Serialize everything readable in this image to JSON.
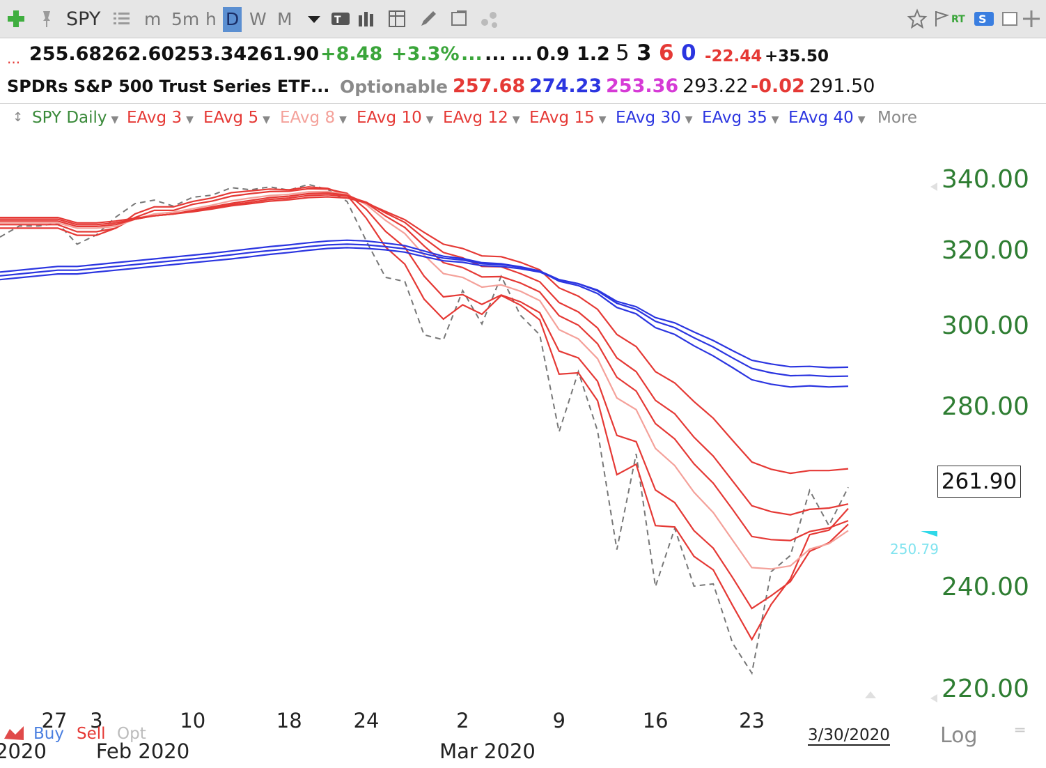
{
  "toolbar": {
    "symbol": "SPY",
    "intervals": [
      "m",
      "5m",
      "h",
      "D",
      "W",
      "M"
    ],
    "active_interval": "D",
    "rt_label": "RT",
    "icons": [
      "add-icon",
      "pin-icon",
      "list-icon",
      "dropdown-icon",
      "text-tool-icon",
      "bar-chart-icon",
      "table-icon",
      "pencil-icon",
      "notes-icon",
      "network-icon",
      "star-icon",
      "flag-icon",
      "s-icon",
      "window-icon",
      "move-icon"
    ]
  },
  "quote": {
    "prefix": "...",
    "open": "255.68",
    "high": "262.60",
    "low": "253.34",
    "close": "261.90",
    "change": "+8.48",
    "change_pct": "+3.3%",
    "dots1": "...",
    "dots2": "...",
    "dots3": "...",
    "v1": "0.9",
    "v2": "1.2",
    "v3": "5",
    "v4": "3",
    "v5": "6",
    "v6": "0",
    "v7": "-22.44",
    "v8": "+35.50",
    "name": "SPDRs S&P 500 Trust Series ETF",
    "dots4": "...",
    "optionable": "Optionable",
    "p1": "257.68",
    "p2": "274.23",
    "p3": "253.36",
    "p4": "293.22",
    "p5": "-0.02",
    "p6": "291.50"
  },
  "legend": {
    "main": "SPY Daily",
    "items": [
      {
        "label": "EAvg 3",
        "color": "#e53935"
      },
      {
        "label": "EAvg 5",
        "color": "#e53935"
      },
      {
        "label": "EAvg 8",
        "color": "#f4a19a"
      },
      {
        "label": "EAvg 10",
        "color": "#e53935"
      },
      {
        "label": "EAvg 12",
        "color": "#e53935"
      },
      {
        "label": "EAvg 15",
        "color": "#e53935"
      },
      {
        "label": "EAvg 30",
        "color": "#2b35e0"
      },
      {
        "label": "EAvg 35",
        "color": "#2b35e0"
      },
      {
        "label": "EAvg 40",
        "color": "#2b35e0"
      }
    ],
    "more": "More"
  },
  "bottom": {
    "buy": "Buy",
    "sell": "Sell",
    "opt": "Opt",
    "date": "3/30/2020",
    "log": "Log"
  },
  "chart_data": {
    "type": "line",
    "ylim": [
      220,
      340
    ],
    "y_ticks": [
      "340.00",
      "320.00",
      "300.00",
      "280.00",
      "240.00",
      "220.00"
    ],
    "x_ticks": [
      "27",
      "3",
      "10",
      "18",
      "24",
      "2",
      "9",
      "16",
      "23"
    ],
    "month_labels": [
      "2020",
      "Feb 2020",
      "Mar 2020"
    ],
    "last_price": "261.90",
    "marker_label": "250.79",
    "dates": [
      "1/27",
      "1/28",
      "1/29",
      "1/30",
      "1/31",
      "2/3",
      "2/4",
      "2/5",
      "2/6",
      "2/7",
      "2/10",
      "2/11",
      "2/12",
      "2/13",
      "2/14",
      "2/18",
      "2/19",
      "2/20",
      "2/21",
      "2/24",
      "2/25",
      "2/26",
      "2/27",
      "2/28",
      "3/2",
      "3/3",
      "3/4",
      "3/5",
      "3/6",
      "3/9",
      "3/10",
      "3/11",
      "3/12",
      "3/13",
      "3/16",
      "3/17",
      "3/18",
      "3/19",
      "3/20",
      "3/23",
      "3/24",
      "3/25",
      "3/26",
      "3/27",
      "3/30"
    ],
    "series": [
      {
        "name": "SPY Daily",
        "color": "#777777",
        "dashed": true,
        "values": [
          323.5,
          326.6,
          326.6,
          327.4,
          321.5,
          324.1,
          329.1,
          332.9,
          333.9,
          332.2,
          334.7,
          335.3,
          337.4,
          336.8,
          337.6,
          336.7,
          338.3,
          336.9,
          333.5,
          322.4,
          312.6,
          311.5,
          297.5,
          296.3,
          309.1,
          300.2,
          312.9,
          302.5,
          297.5,
          274.2,
          288.4,
          274.4,
          248.1,
          269.3,
          239.9,
          252.8,
          240.0,
          240.5,
          228.8,
          222.9,
          243.2,
          246.8,
          261.2,
          253.4,
          261.9
        ]
      },
      {
        "name": "EAvg 3",
        "color": "#e53935",
        "values": [
          326,
          326,
          326,
          326,
          324,
          324,
          326,
          330,
          332,
          332,
          333.5,
          334.5,
          336,
          336.5,
          337,
          336.8,
          337.6,
          337.2,
          335.3,
          328.8,
          320.7,
          316.1,
          306.8,
          301.5,
          305.3,
          302.8,
          307.8,
          305.2,
          301.3,
          287.8,
          288.1,
          281.2,
          264.7,
          267.0,
          253.4,
          253.1,
          246.6,
          243.6,
          236.2,
          229.5,
          236.4,
          241.6,
          251.4,
          252.4,
          257.2
        ]
      },
      {
        "name": "EAvg 5",
        "color": "#e53935",
        "values": [
          327,
          327,
          327,
          327,
          325,
          325,
          326,
          329,
          331,
          331,
          332.7,
          333.6,
          335,
          335.7,
          336.3,
          336.4,
          337.1,
          337.0,
          335.8,
          331.3,
          325.1,
          320.6,
          312.9,
          307.4,
          308.0,
          305.4,
          307.9,
          306.1,
          303.2,
          293.5,
          291.8,
          286.0,
          273.4,
          272.0,
          261.3,
          258.5,
          252.3,
          248.4,
          241.9,
          235.6,
          238.1,
          241.0,
          247.7,
          249.6,
          253.7
        ]
      },
      {
        "name": "EAvg 8",
        "color": "#f4a19a",
        "values": [
          327.5,
          327.5,
          327.5,
          327.5,
          326,
          326,
          326.5,
          328.5,
          330,
          330.5,
          331.5,
          332.5,
          333.7,
          334.5,
          335.2,
          335.5,
          336.2,
          336.3,
          335.5,
          332.6,
          328.2,
          324.5,
          318.5,
          313.6,
          312.6,
          310.0,
          310.6,
          308.9,
          306.4,
          298.8,
          296.5,
          291.6,
          281.9,
          279.1,
          270.5,
          266.7,
          260.8,
          256.3,
          250.2,
          244.1,
          243.8,
          244.5,
          248.2,
          249.4,
          252.3
        ]
      },
      {
        "name": "EAvg 10",
        "color": "#e53935",
        "values": [
          328,
          328,
          328,
          328,
          326.5,
          326.5,
          327,
          328.5,
          329.5,
          330,
          331,
          332,
          333,
          333.8,
          334.6,
          335.0,
          335.7,
          335.9,
          335.3,
          333.1,
          329.4,
          326.2,
          321.0,
          316.5,
          315.2,
          312.7,
          312.8,
          311.1,
          308.7,
          302.4,
          299.9,
          295.3,
          287.0,
          283.6,
          276.0,
          272.6,
          267.1,
          262.8,
          257.0,
          251.0,
          250.3,
          250.1,
          252.1,
          252.9,
          254.5
        ]
      },
      {
        "name": "EAvg 12",
        "color": "#e53935",
        "values": [
          328.5,
          328.5,
          328.5,
          328.5,
          327,
          327,
          327.5,
          328.5,
          329.5,
          330,
          330.8,
          331.6,
          332.6,
          333.3,
          334.1,
          334.5,
          335.2,
          335.4,
          335.0,
          333.3,
          330.3,
          327.6,
          323.2,
          319.2,
          317.8,
          315.5,
          315.4,
          313.6,
          311.4,
          305.9,
          303.4,
          299.2,
          291.8,
          288.4,
          281.3,
          278.2,
          273.0,
          268.8,
          263.3,
          257.8,
          256.5,
          255.8,
          257.0,
          257.3,
          258.2
        ]
      },
      {
        "name": "EAvg 15",
        "color": "#e53935",
        "values": [
          329,
          329,
          329,
          329,
          327.5,
          327.5,
          328,
          328.8,
          329.5,
          330,
          330.6,
          331.4,
          332.3,
          332.9,
          333.6,
          334.0,
          334.6,
          334.8,
          334.5,
          333.1,
          330.7,
          328.4,
          324.8,
          321.5,
          320.3,
          318.3,
          318.1,
          316.6,
          314.6,
          309.8,
          307.6,
          304.1,
          297.6,
          294.6,
          288.4,
          285.6,
          281.0,
          277.2,
          272.3,
          267.5,
          265.9,
          265.0,
          265.6,
          265.6,
          266.0
        ]
      },
      {
        "name": "EAvg 30",
        "color": "#2b35e0",
        "values": [
          314,
          314.5,
          315,
          315.5,
          315.5,
          316,
          316.5,
          317,
          317.5,
          318,
          318.5,
          319,
          319.6,
          320.2,
          320.8,
          321.3,
          321.9,
          322.4,
          322.6,
          322.4,
          321.8,
          321.1,
          319.6,
          318.2,
          317.6,
          316.5,
          316.2,
          315.4,
          314.3,
          311.6,
          310.4,
          308.3,
          304.6,
          302.9,
          299.3,
          297.6,
          294.8,
          292.3,
          289.4,
          286.4,
          285.3,
          284.6,
          284.9,
          284.6,
          284.8
        ]
      },
      {
        "name": "EAvg 35",
        "color": "#2b35e0",
        "values": [
          313,
          313.5,
          314,
          314.5,
          314.5,
          315,
          315.5,
          316,
          316.5,
          317,
          317.5,
          318,
          318.6,
          319.2,
          319.7,
          320.2,
          320.8,
          321.3,
          321.5,
          321.3,
          320.8,
          320.2,
          318.9,
          317.7,
          317.2,
          316.2,
          316.0,
          315.3,
          314.3,
          312.0,
          310.9,
          309.0,
          305.7,
          304.1,
          300.9,
          299.3,
          296.8,
          294.5,
          291.8,
          289.2,
          288.1,
          287.4,
          287.5,
          287.2,
          287.3
        ]
      },
      {
        "name": "EAvg 40",
        "color": "#2b35e0",
        "values": [
          312,
          312.5,
          313,
          313.5,
          313.5,
          314,
          314.5,
          315,
          315.5,
          316,
          316.5,
          317,
          317.5,
          318.1,
          318.7,
          319.2,
          319.8,
          320.3,
          320.5,
          320.3,
          319.9,
          319.3,
          318.1,
          317.0,
          316.6,
          315.7,
          315.5,
          314.9,
          314.0,
          311.9,
          310.9,
          309.2,
          306.2,
          304.8,
          301.9,
          300.5,
          298.2,
          296.1,
          293.6,
          291.2,
          290.3,
          289.6,
          289.7,
          289.4,
          289.5
        ]
      }
    ]
  }
}
